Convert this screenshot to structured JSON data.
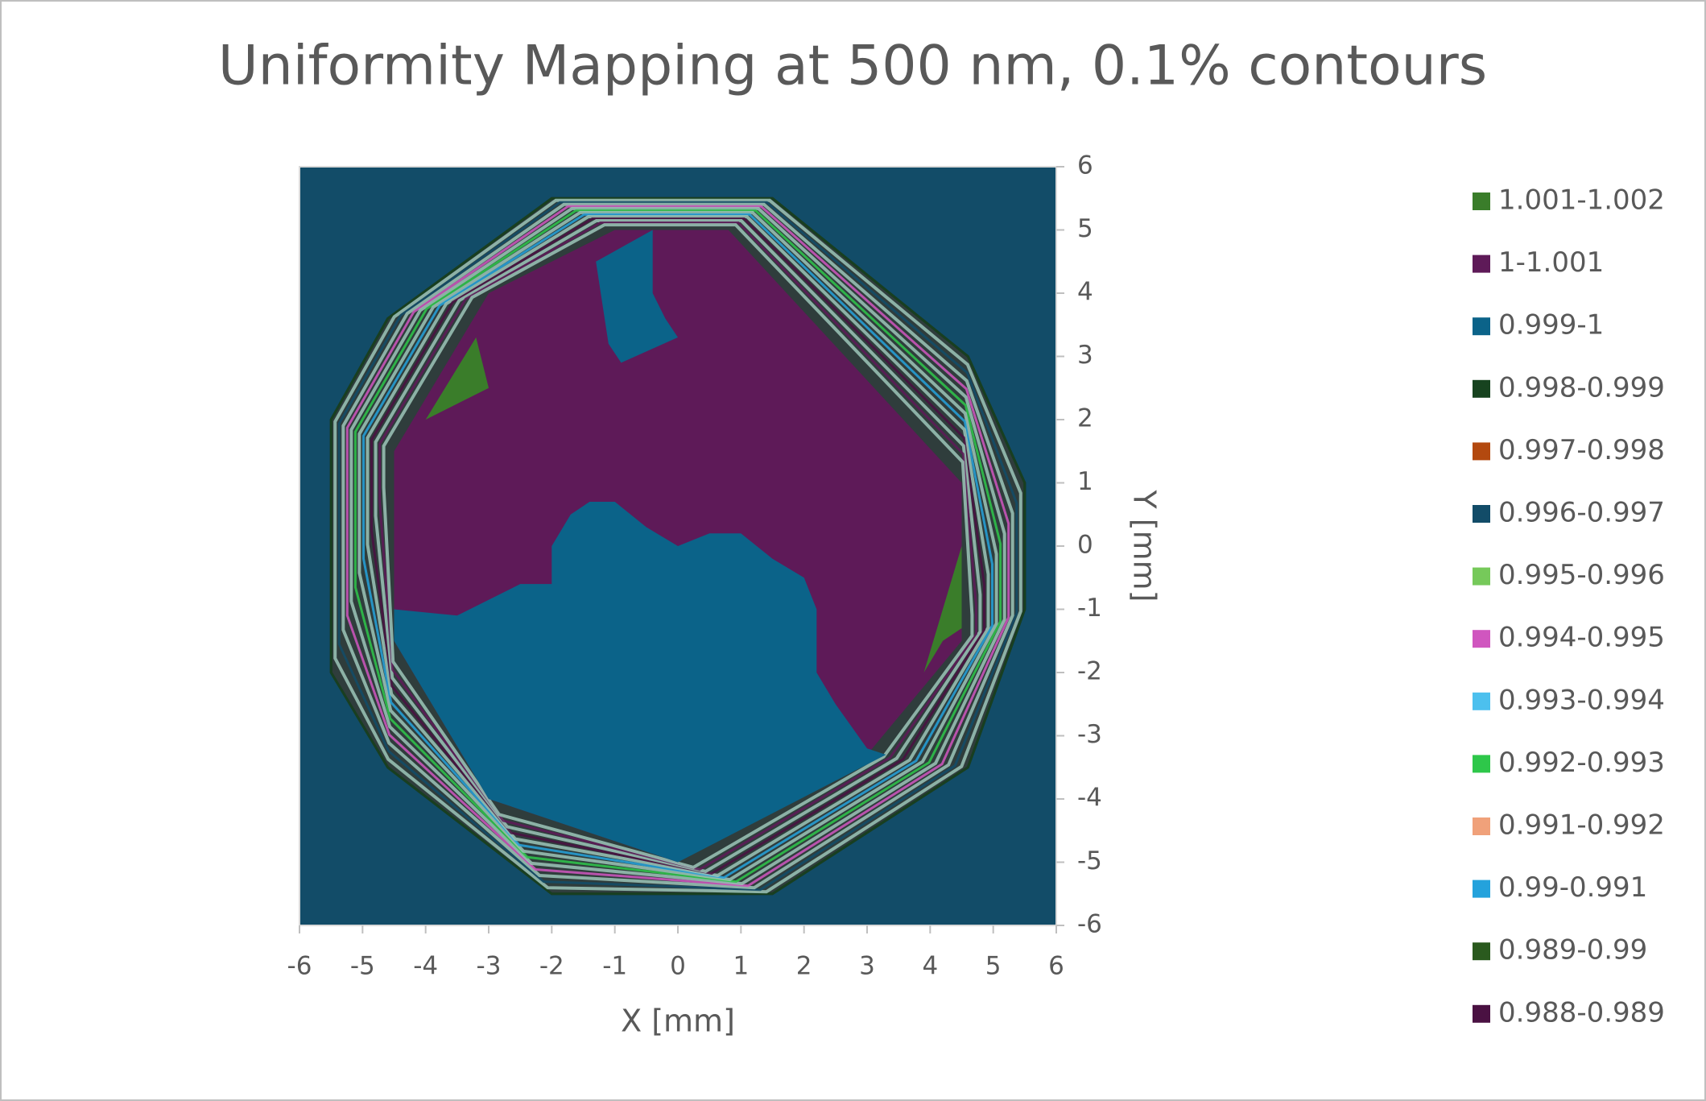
{
  "chart_data": {
    "type": "contour",
    "title": "Uniformity Mapping at 500 nm, 0.1% contours",
    "x_label": "X [mm]",
    "y_label": "Y [mm]",
    "xlim": [
      -6,
      6
    ],
    "xticks": [
      -6,
      -5,
      -4,
      -3,
      -2,
      -1,
      0,
      1,
      2,
      3,
      4,
      5,
      6
    ],
    "ylim": [
      -6,
      6
    ],
    "yticks": [
      -6,
      -5,
      -4,
      -3,
      -2,
      -1,
      0,
      1,
      2,
      3,
      4,
      5,
      6
    ],
    "legend_position": "right",
    "series": [
      {
        "name": "1.001-1.002",
        "color": "#3a7d2a"
      },
      {
        "name": "1-1.001",
        "color": "#5e1a58"
      },
      {
        "name": "0.999-1",
        "color": "#0b6389"
      },
      {
        "name": "0.998-0.999",
        "color": "#17431f"
      },
      {
        "name": "0.997-0.998",
        "color": "#b3490f"
      },
      {
        "name": "0.996-0.997",
        "color": "#124c68"
      },
      {
        "name": "0.995-0.996",
        "color": "#76c95a"
      },
      {
        "name": "0.994-0.995",
        "color": "#d056bf"
      },
      {
        "name": "0.993-0.994",
        "color": "#4cc0ee"
      },
      {
        "name": "0.992-0.993",
        "color": "#2ec74a"
      },
      {
        "name": "0.991-0.992",
        "color": "#f0a17a"
      },
      {
        "name": "0.99-0.991",
        "color": "#24a2dc"
      },
      {
        "name": "0.989-0.99",
        "color": "#2a5a1e"
      },
      {
        "name": "0.988-0.989",
        "color": "#4a1142"
      }
    ]
  }
}
